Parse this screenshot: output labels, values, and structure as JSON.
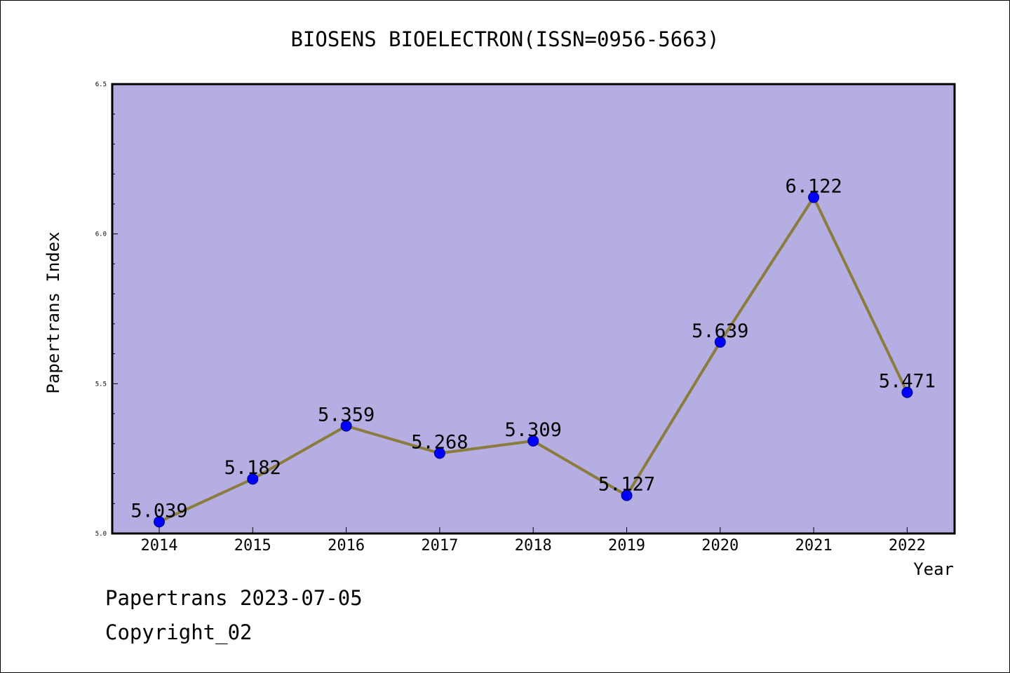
{
  "chart_data": {
    "type": "line",
    "title": "BIOSENS BIOELECTRON(ISSN=0956-5663)",
    "xlabel": "Year",
    "ylabel": "Papertrans Index",
    "categories": [
      "2014",
      "2015",
      "2016",
      "2017",
      "2018",
      "2019",
      "2020",
      "2021",
      "2022"
    ],
    "series": [
      {
        "values": [
          5.039,
          5.182,
          5.359,
          5.268,
          5.309,
          5.127,
          5.639,
          6.122,
          5.471
        ],
        "labels": [
          "5.039",
          "5.182",
          "5.359",
          "5.268",
          "5.309",
          "5.127",
          "5.639",
          "6.122",
          "5.471"
        ]
      }
    ],
    "ylim": [
      5.0,
      6.5
    ],
    "yticks": [
      "5.0",
      "5.5",
      "6.0",
      "6.5"
    ],
    "grid": false,
    "legend": "none",
    "colors": {
      "plot_background": "#b4aee2",
      "line": "#8b7b3c",
      "marker": "#0000ff"
    }
  },
  "footer": {
    "line1": "Papertrans 2023-07-05",
    "line2": "Copyright_02"
  }
}
